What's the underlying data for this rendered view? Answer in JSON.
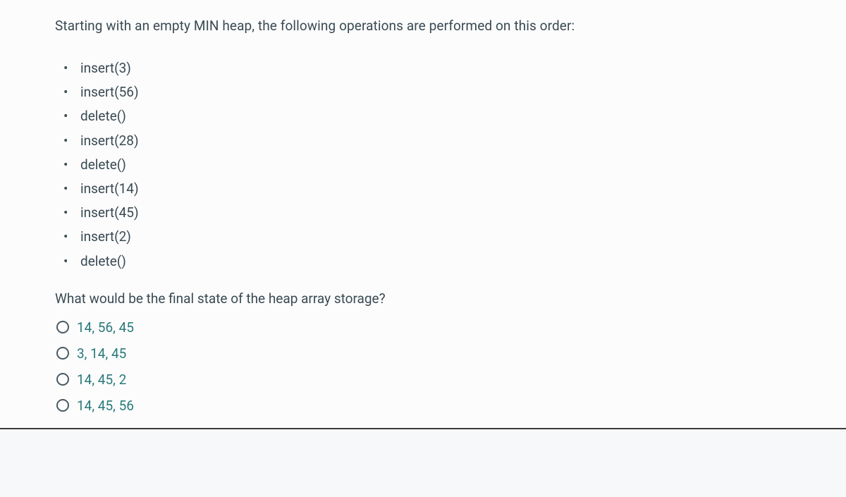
{
  "question": {
    "intro": "Starting with an empty MIN heap, the following operations are performed on this order:",
    "operations": [
      "insert(3)",
      "insert(56)",
      "delete()",
      "insert(28)",
      "delete()",
      "insert(14)",
      "insert(45)",
      "insert(2)",
      "delete()"
    ],
    "prompt": "What would be the final state of the heap array storage?"
  },
  "options": [
    {
      "label": "14, 56, 45"
    },
    {
      "label": "3, 14, 45"
    },
    {
      "label": "14, 45, 2"
    },
    {
      "label": "14, 45, 56"
    }
  ],
  "colors": {
    "text_primary": "#3a4a52",
    "option_text": "#2a7a7a",
    "radio_border": "#4a5a62",
    "background": "#fcfcfd",
    "page_background": "#f7f8f9",
    "bottom_border": "#3a3a3a"
  },
  "typography": {
    "body_fontsize": 19,
    "font_family": "system-ui"
  }
}
